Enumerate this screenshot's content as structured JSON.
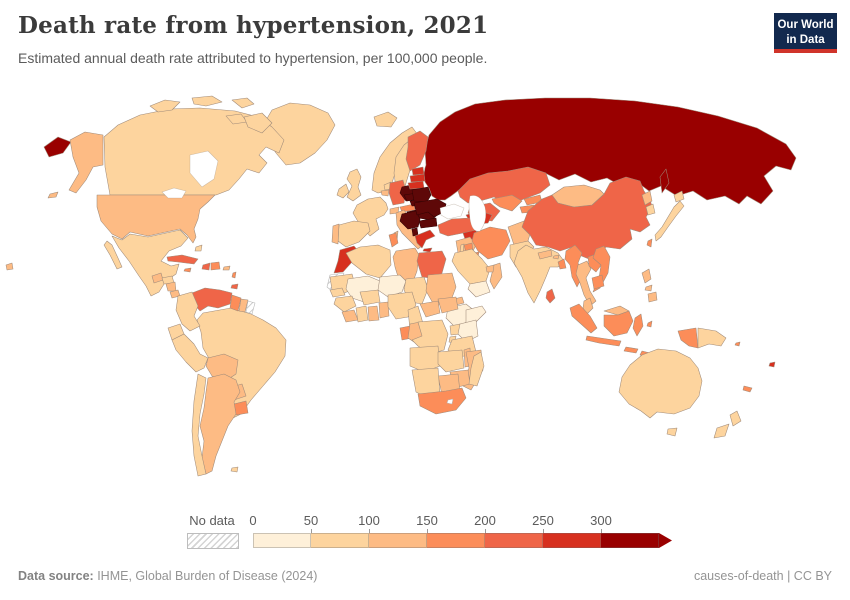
{
  "header": {
    "title": "Death rate from hypertension, 2021",
    "subtitle": "Estimated annual death rate attributed to hypertension, per 100,000 people.",
    "logo": {
      "line1": "Our World",
      "line2": "in Data",
      "bg": "#12294e",
      "bar": "#d0342a"
    }
  },
  "legend": {
    "no_data_label": "No data",
    "tick_labels": [
      "0",
      "50",
      "100",
      "150",
      "200",
      "250",
      "300"
    ],
    "bin_colors": [
      "#fef0d9",
      "#fdd49e",
      "#fdbb84",
      "#fc8d59",
      "#ef6548",
      "#d7301f",
      "#990000"
    ]
  },
  "footer": {
    "source_label": "Data source:",
    "source_text": " IHME, Global Burden of Disease (2024)",
    "right_text": "causes-of-death | CC BY"
  },
  "chart_data": {
    "type": "choropleth",
    "title": "Death rate from hypertension",
    "year": 2021,
    "unit": "deaths per 100,000 people",
    "color_scale": {
      "thresholds": [
        0,
        50,
        100,
        150,
        200,
        250,
        300
      ],
      "colors": [
        "#fef0d9",
        "#fdd49e",
        "#fdbb84",
        "#fc8d59",
        "#ef6548",
        "#d7301f",
        "#990000"
      ],
      "no_data": "hatch"
    },
    "countries": {
      "RUS": {
        "name": "Russia",
        "value": 320,
        "color": "#990000"
      },
      "CAN": {
        "name": "Canada",
        "value": 62,
        "color": "#fdd49e"
      },
      "GRL": {
        "name": "Greenland",
        "value": 75,
        "color": "#fdd49e"
      },
      "USA": {
        "name": "United States",
        "value": 115,
        "color": "#fdbb84"
      },
      "MEX": {
        "name": "Mexico",
        "value": 85,
        "color": "#fdd49e"
      },
      "GTM": {
        "name": "Guatemala",
        "value": 110,
        "color": "#fdbb84"
      },
      "HND": {
        "name": "Honduras",
        "value": 90,
        "color": "#fdd49e"
      },
      "NIC": {
        "name": "Nicaragua",
        "value": 115,
        "color": "#fdbb84"
      },
      "CRI": {
        "name": "Costa Rica",
        "value": 105,
        "color": "#fdbb84"
      },
      "PAN": {
        "name": "Panama",
        "value": 112,
        "color": "#fdbb84"
      },
      "CUB": {
        "name": "Cuba",
        "value": 210,
        "color": "#ef6548"
      },
      "JAM": {
        "name": "Jamaica",
        "value": 165,
        "color": "#fc8d59"
      },
      "HTI": {
        "name": "Haiti",
        "value": 225,
        "color": "#ef6548"
      },
      "DOM": {
        "name": "Dominican Republic",
        "value": 168,
        "color": "#fc8d59"
      },
      "PRI": {
        "name": "Puerto Rico",
        "value": 108,
        "color": "#fdbb84"
      },
      "BHS": {
        "name": "Bahamas",
        "value": 80,
        "color": "#fdd49e"
      },
      "ANT": {
        "name": "Lesser Antilles",
        "value": 175,
        "color": "#fc8d59"
      },
      "TTO": {
        "name": "Trinidad and Tobago",
        "value": 215,
        "color": "#ef6548"
      },
      "VEN": {
        "name": "Venezuela",
        "value": 222,
        "color": "#ef6548"
      },
      "GUY": {
        "name": "Guyana",
        "value": 185,
        "color": "#fc8d59"
      },
      "SUR": {
        "name": "Suriname",
        "value": 135,
        "color": "#fdbb84"
      },
      "GUF": {
        "name": "French Guiana",
        "value": null,
        "color": "hatch"
      },
      "COL": {
        "name": "Colombia",
        "value": 68,
        "color": "#fdd49e"
      },
      "ECU": {
        "name": "Ecuador",
        "value": 60,
        "color": "#fdd49e"
      },
      "PER": {
        "name": "Peru",
        "value": 55,
        "color": "#fdd49e"
      },
      "BOL": {
        "name": "Bolivia",
        "value": 120,
        "color": "#fdbb84"
      },
      "BRA": {
        "name": "Brazil",
        "value": 82,
        "color": "#fdd49e"
      },
      "PRY": {
        "name": "Paraguay",
        "value": 125,
        "color": "#fdbb84"
      },
      "URY": {
        "name": "Uruguay",
        "value": 172,
        "color": "#fc8d59"
      },
      "ARG": {
        "name": "Argentina",
        "value": 115,
        "color": "#fdbb84"
      },
      "CHL": {
        "name": "Chile",
        "value": 62,
        "color": "#fdd49e"
      },
      "FLK": {
        "name": "Falkland Islands",
        "value": 60,
        "color": "#fdd49e"
      },
      "ISL": {
        "name": "Iceland",
        "value": 65,
        "color": "#fdd49e"
      },
      "GBR": {
        "name": "United Kingdom",
        "value": 62,
        "color": "#fdd49e"
      },
      "IRL": {
        "name": "Ireland",
        "value": 58,
        "color": "#fdd49e"
      },
      "NOR": {
        "name": "Norway",
        "value": 60,
        "color": "#fdd49e"
      },
      "SWE": {
        "name": "Sweden",
        "value": 68,
        "color": "#fdd49e"
      },
      "FIN": {
        "name": "Finland",
        "value": 205,
        "color": "#ef6548"
      },
      "DNK": {
        "name": "Denmark",
        "value": 105,
        "color": "#fdbb84"
      },
      "NLD": {
        "name": "Netherlands",
        "value": 65,
        "color": "#fdd49e"
      },
      "BEL": {
        "name": "Belgium",
        "value": 102,
        "color": "#fdbb84"
      },
      "DEU": {
        "name": "Germany",
        "value": 212,
        "color": "#ef6548"
      },
      "FRA": {
        "name": "France",
        "value": 58,
        "color": "#fdd49e"
      },
      "ESP": {
        "name": "Spain",
        "value": 62,
        "color": "#fdd49e"
      },
      "PRT": {
        "name": "Portugal",
        "value": 108,
        "color": "#fdbb84"
      },
      "CHE": {
        "name": "Switzerland",
        "value": 104,
        "color": "#fdbb84"
      },
      "AUT": {
        "name": "Austria",
        "value": 155,
        "color": "#fc8d59"
      },
      "ITA": {
        "name": "Italy",
        "value": 118,
        "color": "#fdbb84"
      },
      "CZE": {
        "name": "Czechia",
        "value": 390,
        "color": "#5e0808"
      },
      "SVK": {
        "name": "Slovakia",
        "value": 400,
        "color": "#5e0808"
      },
      "POL": {
        "name": "Poland",
        "value": 385,
        "color": "#5e0808"
      },
      "HUN": {
        "name": "Hungary",
        "value": 398,
        "color": "#5e0808"
      },
      "ROU": {
        "name": "Romania",
        "value": 405,
        "color": "#5e0808"
      },
      "BGR": {
        "name": "Bulgaria",
        "value": 430,
        "color": "#5e0808"
      },
      "SRB": {
        "name": "Serbia and Western Balkans",
        "value": 415,
        "color": "#5e0808"
      },
      "ALB": {
        "name": "Albania",
        "value": 408,
        "color": "#5e0808"
      },
      "GRC": {
        "name": "Greece",
        "value": 262,
        "color": "#d7301f"
      },
      "EST": {
        "name": "Estonia",
        "value": 258,
        "color": "#d7301f"
      },
      "LVA": {
        "name": "Latvia",
        "value": 280,
        "color": "#d7301f"
      },
      "LTU": {
        "name": "Lithuania",
        "value": 285,
        "color": "#d7301f"
      },
      "BLR": {
        "name": "Belarus",
        "value": 425,
        "color": "#5e0808"
      },
      "UKR": {
        "name": "Ukraine",
        "value": 432,
        "color": "#5e0808"
      },
      "KAZ": {
        "name": "Kazakhstan",
        "value": 230,
        "color": "#ef6548"
      },
      "TKM": {
        "name": "Turkmenistan",
        "value": 235,
        "color": "#ef6548"
      },
      "UZB": {
        "name": "Uzbekistan",
        "value": 188,
        "color": "#fc8d59"
      },
      "KGZ": {
        "name": "Kyrgyzstan",
        "value": 182,
        "color": "#fc8d59"
      },
      "TJK": {
        "name": "Tajikistan",
        "value": 178,
        "color": "#fc8d59"
      },
      "CAU": {
        "name": "Georgia, Armenia and Azerbaijan",
        "value": 275,
        "color": "#d7301f"
      },
      "TUR": {
        "name": "Turkey",
        "value": 215,
        "color": "#ef6548"
      },
      "SYR": {
        "name": "Syria",
        "value": 262,
        "color": "#d7301f"
      },
      "IRQ": {
        "name": "Iraq",
        "value": 128,
        "color": "#fdbb84"
      },
      "IRN": {
        "name": "Iran",
        "value": 170,
        "color": "#fc8d59"
      },
      "JOR": {
        "name": "Jordan",
        "value": 162,
        "color": "#fc8d59"
      },
      "ISR": {
        "name": "Israel",
        "value": 55,
        "color": "#fdd49e"
      },
      "SAU": {
        "name": "Saudi Arabia",
        "value": 78,
        "color": "#fdd49e"
      },
      "YEM": {
        "name": "Yemen",
        "value": 45,
        "color": "#fef0d9"
      },
      "OMN": {
        "name": "Oman",
        "value": 112,
        "color": "#fdbb84"
      },
      "ARE": {
        "name": "United Arab Emirates",
        "value": 105,
        "color": "#fdbb84"
      },
      "KWT": {
        "name": "Kuwait",
        "value": 165,
        "color": "#fc8d59"
      },
      "AFG": {
        "name": "Afghanistan",
        "value": 135,
        "color": "#fdbb84"
      },
      "PAK": {
        "name": "Pakistan",
        "value": 95,
        "color": "#fdd49e"
      },
      "IND": {
        "name": "India",
        "value": 85,
        "color": "#fdd49e"
      },
      "NPL": {
        "name": "Nepal",
        "value": 130,
        "color": "#fdbb84"
      },
      "BTN": {
        "name": "Bhutan",
        "value": 125,
        "color": "#fdbb84"
      },
      "BGD": {
        "name": "Bangladesh",
        "value": 172,
        "color": "#fc8d59"
      },
      "LKA": {
        "name": "Sri Lanka",
        "value": 212,
        "color": "#ef6548"
      },
      "CHN": {
        "name": "China",
        "value": 228,
        "color": "#ef6548"
      },
      "MNG": {
        "name": "Mongolia",
        "value": 135,
        "color": "#fdbb84"
      },
      "PRK": {
        "name": "North Korea",
        "value": 132,
        "color": "#fdbb84"
      },
      "KOR": {
        "name": "South Korea",
        "value": 55,
        "color": "#fdd49e"
      },
      "JPN": {
        "name": "Japan",
        "value": 58,
        "color": "#fdd49e"
      },
      "TWN": {
        "name": "Taiwan",
        "value": 160,
        "color": "#fc8d59"
      },
      "MMR": {
        "name": "Myanmar",
        "value": 182,
        "color": "#fc8d59"
      },
      "THA": {
        "name": "Thailand",
        "value": 118,
        "color": "#fdbb84"
      },
      "LAO": {
        "name": "Laos",
        "value": 178,
        "color": "#fc8d59"
      },
      "VNM": {
        "name": "Vietnam",
        "value": 172,
        "color": "#fc8d59"
      },
      "KHM": {
        "name": "Cambodia",
        "value": 168,
        "color": "#fc8d59"
      },
      "MYS": {
        "name": "Malaysia",
        "value": 130,
        "color": "#fdbb84"
      },
      "IDN": {
        "name": "Indonesia",
        "value": 178,
        "color": "#fc8d59"
      },
      "PHL": {
        "name": "Philippines",
        "value": 128,
        "color": "#fdbb84"
      },
      "PNG": {
        "name": "Papua New Guinea",
        "value": 85,
        "color": "#fdd49e"
      },
      "SLB": {
        "name": "Solomon Islands",
        "value": 165,
        "color": "#fc8d59"
      },
      "FJI": {
        "name": "Fiji",
        "value": 270,
        "color": "#d7301f"
      },
      "NCL": {
        "name": "New Caledonia",
        "value": 160,
        "color": "#fc8d59"
      },
      "AUS": {
        "name": "Australia",
        "value": 68,
        "color": "#fdd49e"
      },
      "NZL": {
        "name": "New Zealand",
        "value": 62,
        "color": "#fdd49e"
      },
      "MAR": {
        "name": "Morocco",
        "value": 268,
        "color": "#d7301f"
      },
      "ESH": {
        "name": "Western Sahara",
        "value": null,
        "color": "hatch"
      },
      "DZA": {
        "name": "Algeria",
        "value": 90,
        "color": "#fdd49e"
      },
      "TUN": {
        "name": "Tunisia",
        "value": 158,
        "color": "#fc8d59"
      },
      "LBY": {
        "name": "Libya",
        "value": 120,
        "color": "#fdbb84"
      },
      "EGY": {
        "name": "Egypt",
        "value": 225,
        "color": "#ef6548"
      },
      "MRT": {
        "name": "Mauritania",
        "value": 72,
        "color": "#fdd49e"
      },
      "MLI": {
        "name": "Mali",
        "value": 30,
        "color": "#fef0d9"
      },
      "NER": {
        "name": "Niger",
        "value": 28,
        "color": "#fef0d9"
      },
      "TCD": {
        "name": "Chad",
        "value": 85,
        "color": "#fdd49e"
      },
      "SDN": {
        "name": "Sudan",
        "value": 115,
        "color": "#fdbb84"
      },
      "ERI": {
        "name": "Eritrea",
        "value": 112,
        "color": "#fdbb84"
      },
      "DJI": {
        "name": "Djibouti",
        "value": 85,
        "color": "#fdd49e"
      },
      "ETH": {
        "name": "Ethiopia",
        "value": 40,
        "color": "#fef0d9"
      },
      "SOM": {
        "name": "Somalia",
        "value": 35,
        "color": "#fef0d9"
      },
      "SEN": {
        "name": "Senegal",
        "value": 78,
        "color": "#fdd49e"
      },
      "GIN": {
        "name": "Guinea",
        "value": 88,
        "color": "#fdd49e"
      },
      "SLE": {
        "name": "Sierra Leone and Liberia",
        "value": 130,
        "color": "#fdbb84"
      },
      "CIV": {
        "name": "Cote d'Ivoire",
        "value": 92,
        "color": "#fdd49e"
      },
      "GHA": {
        "name": "Ghana",
        "value": 135,
        "color": "#fdbb84"
      },
      "TGB": {
        "name": "Togo and Benin",
        "value": 115,
        "color": "#fdbb84"
      },
      "BFA": {
        "name": "Burkina Faso",
        "value": 82,
        "color": "#fdd49e"
      },
      "NGA": {
        "name": "Nigeria",
        "value": 90,
        "color": "#fdd49e"
      },
      "CMR": {
        "name": "Cameroon",
        "value": 88,
        "color": "#fdd49e"
      },
      "CAF": {
        "name": "Central African Republic",
        "value": 130,
        "color": "#fdbb84"
      },
      "SSD": {
        "name": "South Sudan",
        "value": 125,
        "color": "#fdbb84"
      },
      "UGA": {
        "name": "Uganda",
        "value": 70,
        "color": "#fdd49e"
      },
      "KEN": {
        "name": "Kenya",
        "value": 42,
        "color": "#fef0d9"
      },
      "RWB": {
        "name": "Rwanda and Burundi",
        "value": 75,
        "color": "#fdd49e"
      },
      "GAB": {
        "name": "Gabon",
        "value": 162,
        "color": "#fc8d59"
      },
      "COG": {
        "name": "Congo",
        "value": 118,
        "color": "#fdbb84"
      },
      "COD": {
        "name": "DR Congo",
        "value": 85,
        "color": "#fdd49e"
      },
      "TZA": {
        "name": "Tanzania",
        "value": 76,
        "color": "#fdd49e"
      },
      "AGO": {
        "name": "Angola",
        "value": 88,
        "color": "#fdd49e"
      },
      "ZMB": {
        "name": "Zambia",
        "value": 90,
        "color": "#fdd49e"
      },
      "MWI": {
        "name": "Malawi",
        "value": 112,
        "color": "#fdbb84"
      },
      "MOZ": {
        "name": "Mozambique",
        "value": 128,
        "color": "#fdbb84"
      },
      "ZWE": {
        "name": "Zimbabwe",
        "value": 122,
        "color": "#fdbb84"
      },
      "BWA": {
        "name": "Botswana",
        "value": 126,
        "color": "#fdbb84"
      },
      "NAM": {
        "name": "Namibia",
        "value": 92,
        "color": "#fdd49e"
      },
      "ZAF": {
        "name": "South Africa",
        "value": 180,
        "color": "#fc8d59"
      },
      "LSO": {
        "name": "Lesotho",
        "value": null,
        "color": "#ffffff"
      },
      "MDG": {
        "name": "Madagascar",
        "value": 80,
        "color": "#fdd49e"
      }
    }
  }
}
